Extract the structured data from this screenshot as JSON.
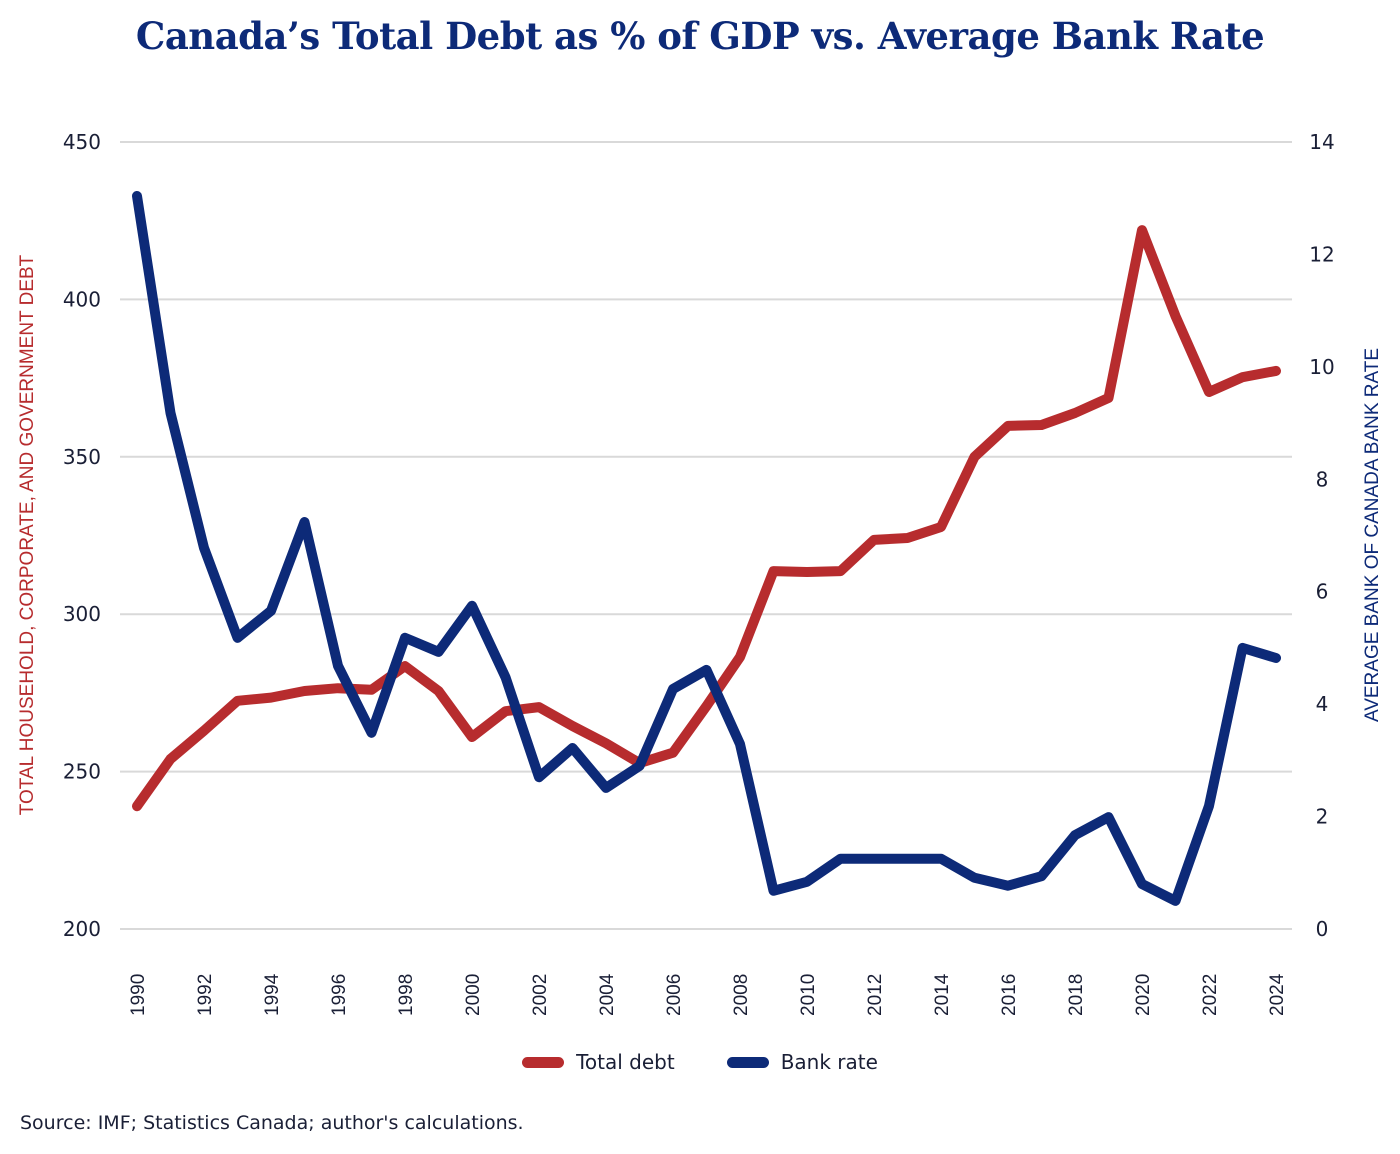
{
  "chart_data": {
    "type": "line",
    "title": "Canada’s Total Debt as % of GDP vs. Average Bank Rate",
    "x": [
      1990,
      1991,
      1992,
      1993,
      1994,
      1995,
      1996,
      1997,
      1998,
      1999,
      2000,
      2001,
      2002,
      2003,
      2004,
      2005,
      2006,
      2007,
      2008,
      2009,
      2010,
      2011,
      2012,
      2013,
      2014,
      2015,
      2016,
      2017,
      2018,
      2019,
      2020,
      2021,
      2022,
      2023,
      2024
    ],
    "x_tick_labels": [
      "1990",
      "1992",
      "1994",
      "1996",
      "1998",
      "2000",
      "2002",
      "2004",
      "2006",
      "2008",
      "2010",
      "2012",
      "2014",
      "2016",
      "2018",
      "2020",
      "2022",
      "2024"
    ],
    "xlabel": "",
    "y_left": {
      "label": "TOTAL HOUSEHOLD, CORPORATE, AND GOVERNMENT DEBT",
      "range": [
        200,
        450
      ],
      "ticks": [
        "200",
        "250",
        "300",
        "350",
        "400",
        "450"
      ],
      "color": "#b72c2e"
    },
    "y_right": {
      "label": "AVERAGE BANK OF CANADA BANK RATE",
      "range": [
        0,
        14
      ],
      "ticks": [
        "0",
        "2",
        "4",
        "6",
        "8",
        "10",
        "12",
        "14"
      ],
      "color": "#0d2a78"
    },
    "grid": true,
    "legend_position": "bottom-center",
    "series": [
      {
        "name": "Total debt",
        "axis": "left",
        "color": "#b72c2e",
        "values": [
          239,
          254,
          263,
          272.5,
          273.5,
          275.6,
          276.5,
          276,
          283.5,
          275.6,
          261,
          269.2,
          270.5,
          264.5,
          259,
          252.7,
          256,
          270.8,
          286.4,
          313.7,
          313.4,
          313.7,
          323.6,
          324.2,
          327.7,
          350,
          359.8,
          360.1,
          363.9,
          368.7,
          422,
          394.7,
          370.6,
          375.3,
          377.3
        ]
      },
      {
        "name": "Bank rate",
        "axis": "right",
        "color": "#0d2a78",
        "values": [
          13.04,
          9.18,
          6.78,
          5.18,
          5.66,
          7.24,
          4.68,
          3.49,
          5.18,
          4.93,
          5.75,
          4.48,
          2.7,
          3.22,
          2.51,
          2.9,
          4.27,
          4.61,
          3.29,
          0.68,
          0.84,
          1.25,
          1.25,
          1.25,
          1.25,
          0.91,
          0.77,
          0.94,
          1.67,
          1.99,
          0.8,
          0.5,
          2.19,
          5.0,
          4.82
        ]
      }
    ]
  },
  "legend": {
    "items": [
      {
        "label": "Total debt",
        "color": "#b72c2e"
      },
      {
        "label": "Bank rate",
        "color": "#0d2a78"
      }
    ]
  },
  "source": "Source: IMF; Statistics Canada; author's calculations."
}
